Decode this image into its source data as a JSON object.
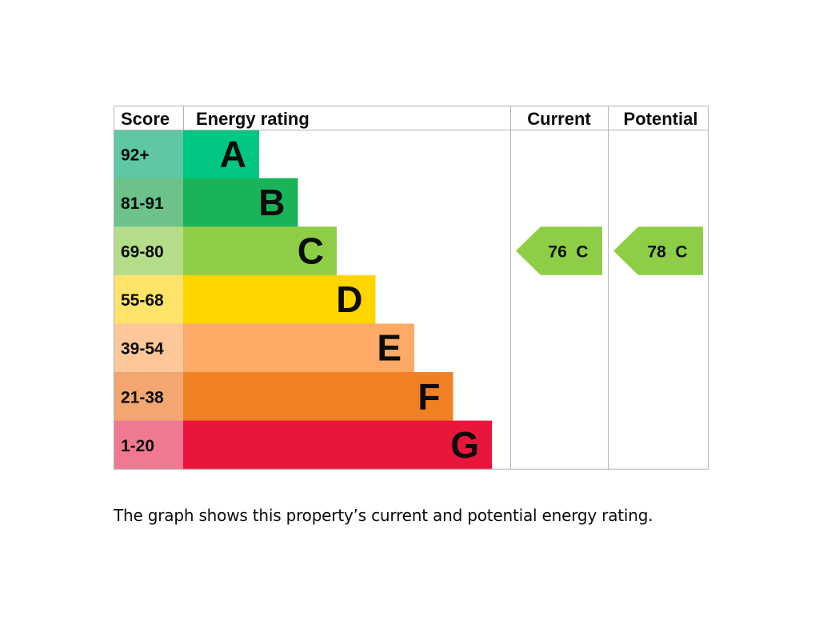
{
  "chart_data": {
    "type": "table",
    "headers": {
      "score": "Score",
      "rating": "Energy rating",
      "current": "Current",
      "potential": "Potential"
    },
    "bands": [
      {
        "letter": "A",
        "score": "92+",
        "bar_color": "#00c781",
        "score_color": "#5fc7a3"
      },
      {
        "letter": "B",
        "score": "81-91",
        "bar_color": "#19b459",
        "score_color": "#6cc28a"
      },
      {
        "letter": "C",
        "score": "69-80",
        "bar_color": "#8dce46",
        "score_color": "#b5dd89"
      },
      {
        "letter": "D",
        "score": "55-68",
        "bar_color": "#ffd500",
        "score_color": "#ffe36b"
      },
      {
        "letter": "E",
        "score": "39-54",
        "bar_color": "#fcaa65",
        "score_color": "#fdc799"
      },
      {
        "letter": "F",
        "score": "21-38",
        "bar_color": "#ef8023",
        "score_color": "#f3a670"
      },
      {
        "letter": "G",
        "score": "1-20",
        "bar_color": "#e9153b",
        "score_color": "#f07991"
      }
    ],
    "current": {
      "value": 76,
      "band": "C",
      "label": "76  C",
      "color": "#8dce46"
    },
    "potential": {
      "value": 78,
      "band": "C",
      "label": "78  C",
      "color": "#8dce46"
    }
  },
  "caption": "The graph shows this property’s current and potential energy rating."
}
